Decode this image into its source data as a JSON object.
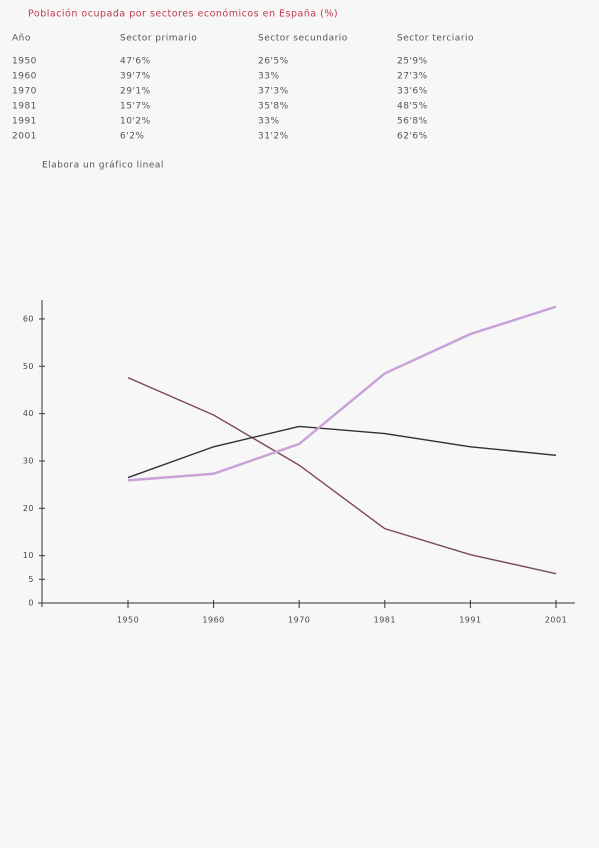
{
  "title": "Población ocupada por sectores económicos en España (%)",
  "table": {
    "header": [
      "Año",
      "Sector primario",
      "Sector secundario",
      "Sector terciario"
    ],
    "rows": [
      [
        "1950",
        "47'6%",
        "26'5%",
        "25'9%"
      ],
      [
        "1960",
        "39'7%",
        "33%",
        "27'3%"
      ],
      [
        "1970",
        "29'1%",
        "37'3%",
        "33'6%"
      ],
      [
        "1981",
        "15'7%",
        "35'8%",
        "48'5%"
      ],
      [
        "1991",
        "10'2%",
        "33%",
        "56'8%"
      ],
      [
        "2001",
        "6'2%",
        "31'2%",
        "62'6%"
      ]
    ]
  },
  "instruction": "Elabora un gráfico lineal",
  "chart_data": {
    "type": "line",
    "categories": [
      "1950",
      "1960",
      "1970",
      "1981",
      "1991",
      "2001"
    ],
    "series": [
      {
        "color": "#7a4a55",
        "values": [
          47.6,
          39.7,
          29.1,
          15.7,
          10.2,
          6.2
        ]
      },
      {
        "color": "#2f2f35",
        "values": [
          26.5,
          33,
          37.3,
          35.8,
          33,
          31.2
        ]
      },
      {
        "color": "#c9a2d8",
        "values": [
          25.9,
          27.3,
          33.6,
          48.5,
          56.8,
          62.6
        ]
      }
    ],
    "ylim": [
      0,
      64
    ],
    "yticks": [
      0,
      5,
      10,
      20,
      30,
      40,
      50,
      60
    ]
  }
}
